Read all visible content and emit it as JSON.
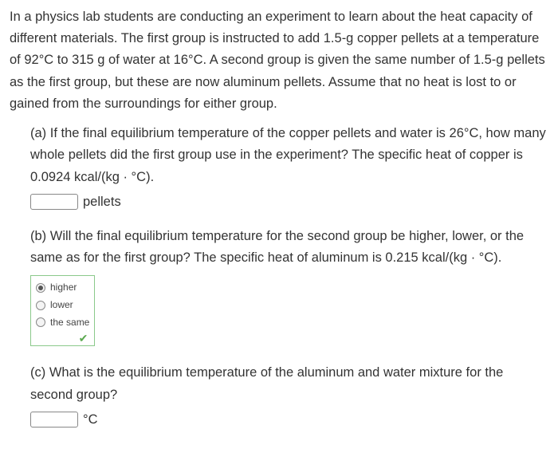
{
  "intro": "In a physics lab students are conducting an experiment to learn about the heat capacity of different materials. The first group is instructed to add 1.5-g copper pellets at a temperature of 92°C to 315 g of water at 16°C. A second group is given the same number of 1.5-g pellets as the first group, but these are now aluminum pellets. Assume that no heat is lost to or gained from the surroundings for either group.",
  "a": {
    "prompt": "(a) If the final equilibrium temperature of the copper pellets and water is 26°C, how many whole pellets did the first group use in the experiment? The specific heat of copper is 0.0924 kcal/(kg · °C).",
    "unit": "pellets"
  },
  "b": {
    "prompt": "(b) Will the final equilibrium temperature for the second group be higher, lower, or the same as for the first group? The specific heat of aluminum is 0.215 kcal/(kg · °C).",
    "options": {
      "o1": "higher",
      "o2": "lower",
      "o3": "the same"
    },
    "checkmark": "✔"
  },
  "c": {
    "prompt": "(c) What is the equilibrium temperature of the aluminum and water mixture for the second group?",
    "unit": "°C"
  }
}
